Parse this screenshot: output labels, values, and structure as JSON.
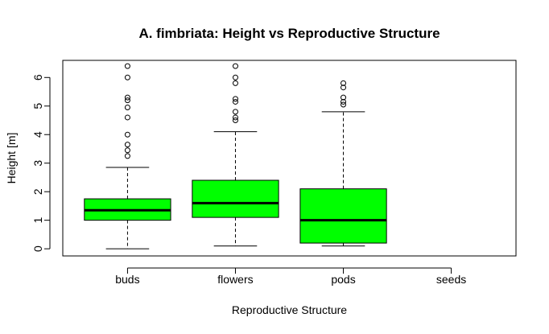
{
  "chart_data": {
    "type": "box",
    "title": "A. fimbriata: Height vs Reproductive Structure",
    "xlabel": "Reproductive Structure",
    "ylabel": "Height [m]",
    "ylim": [
      -0.25,
      6.6
    ],
    "yticks": [
      0,
      1,
      2,
      3,
      4,
      5,
      6
    ],
    "categories": [
      "buds",
      "flowers",
      "pods",
      "seeds"
    ],
    "box_color": "#00ff00",
    "boxes": [
      {
        "category": "buds",
        "min": 0.0,
        "q1": 1.0,
        "median": 1.35,
        "q3": 1.75,
        "max": 2.85,
        "outliers": [
          3.25,
          3.45,
          3.65,
          4.0,
          4.6,
          4.95,
          5.2,
          5.3,
          6.0,
          6.4
        ]
      },
      {
        "category": "flowers",
        "min": 0.1,
        "q1": 1.1,
        "median": 1.6,
        "q3": 2.4,
        "max": 4.1,
        "outliers": [
          4.5,
          4.6,
          4.8,
          5.15,
          5.25,
          5.8,
          6.0,
          6.4
        ]
      },
      {
        "category": "pods",
        "min": 0.1,
        "q1": 0.2,
        "median": 1.0,
        "q3": 2.1,
        "max": 4.8,
        "outliers": [
          5.05,
          5.15,
          5.3,
          5.65,
          5.8
        ]
      },
      {
        "category": "seeds"
      }
    ]
  }
}
